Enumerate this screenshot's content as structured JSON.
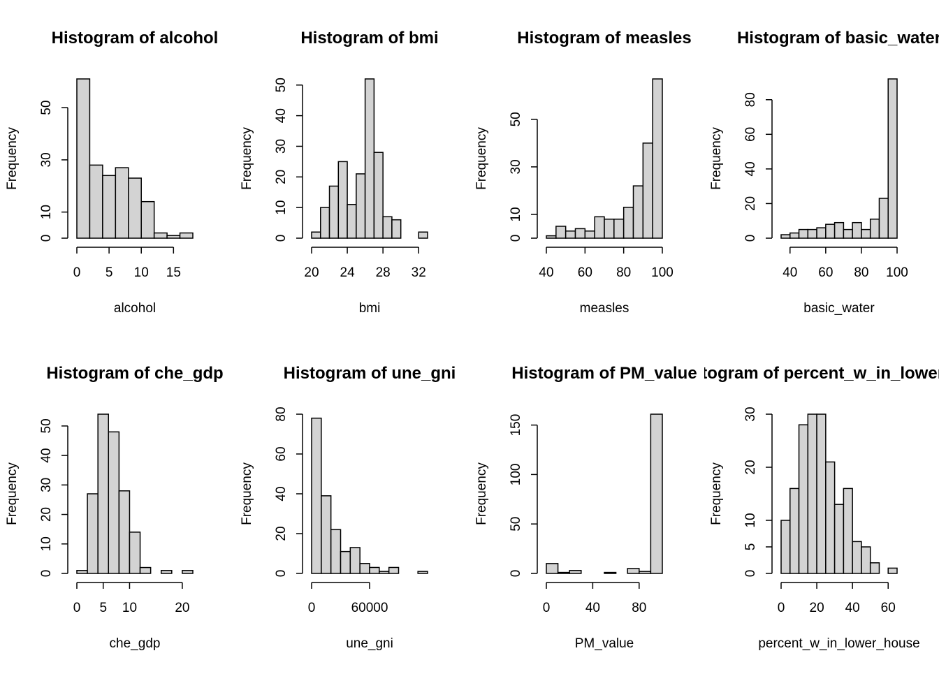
{
  "ylabel_common": "Frequency",
  "chart_data": [
    {
      "type": "bar",
      "title": "Histogram of alcohol",
      "xlabel": "alcohol",
      "ylabel": "Frequency",
      "bin_edges": [
        0,
        2,
        4,
        6,
        8,
        10,
        12,
        14,
        16,
        18
      ],
      "values": [
        61,
        28,
        24,
        27,
        23,
        14,
        2,
        1,
        2
      ],
      "xticks": [
        0,
        5,
        10,
        15
      ],
      "xtick_labels": [
        "0",
        "5",
        "10",
        "15"
      ],
      "yticks": [
        0,
        10,
        30,
        50
      ],
      "ytick_labels": [
        "0",
        "10",
        "30",
        "50"
      ],
      "xlim": [
        0,
        18
      ],
      "ylim": [
        0,
        61
      ]
    },
    {
      "type": "bar",
      "title": "Histogram of bmi",
      "xlabel": "bmi",
      "ylabel": "Frequency",
      "bin_edges": [
        20,
        21,
        22,
        23,
        24,
        25,
        26,
        27,
        28,
        29,
        30,
        31,
        32,
        33
      ],
      "values": [
        2,
        10,
        17,
        25,
        11,
        21,
        52,
        28,
        7,
        6,
        0,
        0,
        2
      ],
      "xticks": [
        20,
        24,
        28,
        32
      ],
      "xtick_labels": [
        "20",
        "24",
        "28",
        "32"
      ],
      "yticks": [
        0,
        10,
        20,
        30,
        40,
        50
      ],
      "ytick_labels": [
        "0",
        "10",
        "20",
        "30",
        "40",
        "50"
      ],
      "xlim": [
        20,
        33
      ],
      "ylim": [
        0,
        52
      ]
    },
    {
      "type": "bar",
      "title": "Histogram of measles",
      "xlabel": "measles",
      "ylabel": "Frequency",
      "bin_edges": [
        40,
        45,
        50,
        55,
        60,
        65,
        70,
        75,
        80,
        85,
        90,
        95,
        100
      ],
      "values": [
        1,
        5,
        3,
        4,
        3,
        9,
        8,
        8,
        13,
        22,
        40,
        67
      ],
      "xticks": [
        40,
        60,
        80,
        100
      ],
      "xtick_labels": [
        "40",
        "60",
        "80",
        "100"
      ],
      "yticks": [
        0,
        10,
        30,
        50
      ],
      "ytick_labels": [
        "0",
        "10",
        "30",
        "50"
      ],
      "xlim": [
        40,
        100
      ],
      "ylim": [
        0,
        67
      ]
    },
    {
      "type": "bar",
      "title": "Histogram of basic_water",
      "xlabel": "basic_water",
      "ylabel": "Frequency",
      "bin_edges": [
        35,
        40,
        45,
        50,
        55,
        60,
        65,
        70,
        75,
        80,
        85,
        90,
        95,
        100
      ],
      "values": [
        2,
        3,
        5,
        5,
        6,
        8,
        9,
        5,
        9,
        5,
        11,
        23,
        92
      ],
      "xticks": [
        40,
        60,
        80,
        100
      ],
      "xtick_labels": [
        "40",
        "60",
        "80",
        "100"
      ],
      "yticks": [
        0,
        20,
        40,
        60,
        80
      ],
      "ytick_labels": [
        "0",
        "20",
        "40",
        "60",
        "80"
      ],
      "xlim": [
        35,
        100
      ],
      "ylim": [
        0,
        92
      ]
    },
    {
      "type": "bar",
      "title": "Histogram of che_gdp",
      "xlabel": "che_gdp",
      "ylabel": "Frequency",
      "bin_edges": [
        0,
        2,
        4,
        6,
        8,
        10,
        12,
        14,
        16,
        18,
        20,
        22
      ],
      "values": [
        1,
        27,
        54,
        48,
        28,
        14,
        2,
        0,
        1,
        0,
        1
      ],
      "xticks": [
        0,
        5,
        10,
        20
      ],
      "xtick_labels": [
        "0",
        "5",
        "10",
        "20"
      ],
      "yticks": [
        0,
        10,
        20,
        30,
        40,
        50
      ],
      "ytick_labels": [
        "0",
        "10",
        "20",
        "30",
        "40",
        "50"
      ],
      "xlim": [
        0,
        22
      ],
      "ylim": [
        0,
        54
      ]
    },
    {
      "type": "bar",
      "title": "Histogram of une_gni",
      "xlabel": "une_gni",
      "ylabel": "Frequency",
      "bin_edges": [
        0,
        10000,
        20000,
        30000,
        40000,
        50000,
        60000,
        70000,
        80000,
        90000,
        100000,
        110000,
        120000
      ],
      "values": [
        78,
        39,
        22,
        11,
        13,
        5,
        3,
        1,
        3,
        0,
        0,
        1
      ],
      "xticks": [
        0,
        60000
      ],
      "xtick_labels": [
        "0",
        "60000"
      ],
      "yticks": [
        0,
        20,
        40,
        60,
        80
      ],
      "ytick_labels": [
        "0",
        "20",
        "40",
        "60",
        "80"
      ],
      "xlim": [
        0,
        120000
      ],
      "ylim": [
        0,
        80
      ]
    },
    {
      "type": "bar",
      "title": "Histogram of PM_value",
      "xlabel": "PM_value",
      "ylabel": "Frequency",
      "bin_edges": [
        0,
        10,
        20,
        30,
        40,
        50,
        60,
        70,
        80,
        90,
        100
      ],
      "values": [
        10,
        1,
        3,
        0,
        0,
        1,
        0,
        5,
        2,
        161
      ],
      "xticks": [
        0,
        40,
        80
      ],
      "xtick_labels": [
        "0",
        "40",
        "80"
      ],
      "yticks": [
        0,
        50,
        100,
        150
      ],
      "ytick_labels": [
        "0",
        "50",
        "100",
        "150"
      ],
      "xlim": [
        0,
        100
      ],
      "ylim": [
        0,
        161
      ]
    },
    {
      "type": "bar",
      "title": "Histogram of percent_w_in_lower_house",
      "xlabel": "percent_w_in_lower_house",
      "ylabel": "Frequency",
      "bin_edges": [
        0,
        5,
        10,
        15,
        20,
        25,
        30,
        35,
        40,
        45,
        50,
        55,
        60,
        65
      ],
      "values": [
        10,
        16,
        28,
        30,
        30,
        21,
        13,
        16,
        6,
        5,
        2,
        0,
        1
      ],
      "xticks": [
        0,
        20,
        40,
        60
      ],
      "xtick_labels": [
        "0",
        "20",
        "40",
        "60"
      ],
      "yticks": [
        0,
        5,
        10,
        20,
        30
      ],
      "ytick_labels": [
        "0",
        "5",
        "10",
        "20",
        "30"
      ],
      "xlim": [
        0,
        65
      ],
      "ylim": [
        0,
        30
      ]
    }
  ]
}
